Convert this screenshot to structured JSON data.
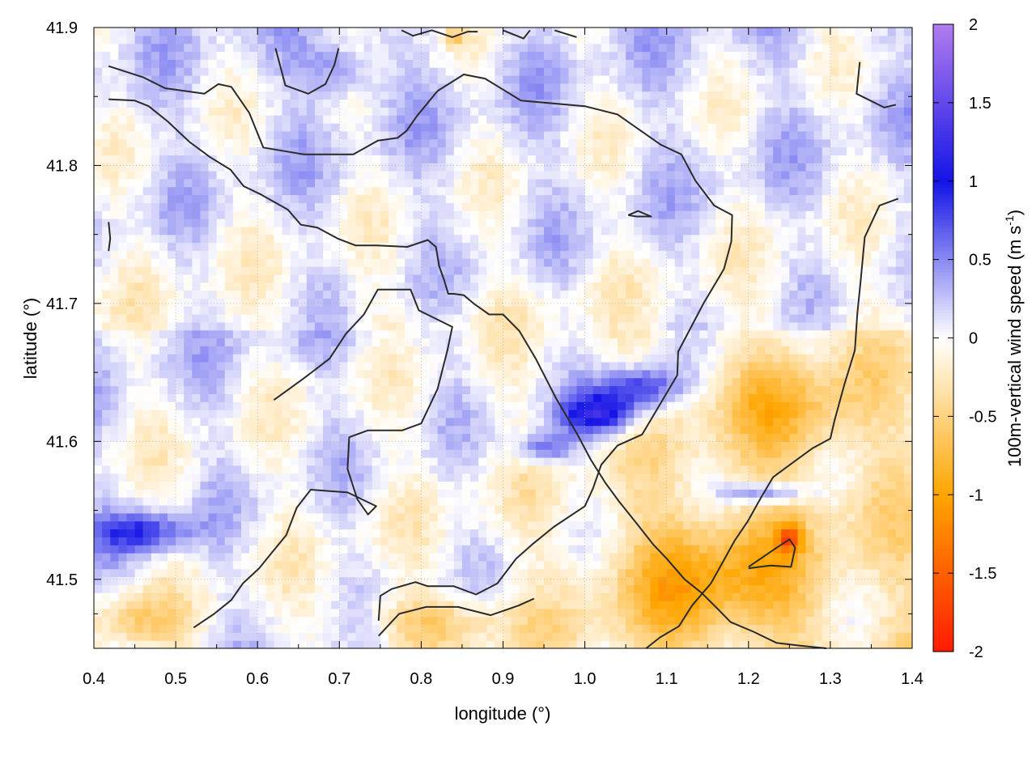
{
  "chart_data": {
    "type": "heatmap",
    "xlabel": "longitude (°)",
    "ylabel": "latitude (°)",
    "xlim": [
      0.4,
      1.4
    ],
    "ylim": [
      41.45,
      41.9
    ],
    "x_ticks": [
      0.4,
      0.5,
      0.6,
      0.7,
      0.8,
      0.9,
      1.0,
      1.1,
      1.2,
      1.3,
      1.4
    ],
    "x_tick_labels": [
      "0.4",
      "0.5",
      "0.6",
      "0.7",
      "0.8",
      "0.9",
      "1.0",
      "1.1",
      "1.2",
      "1.3",
      "1.4"
    ],
    "y_ticks": [
      41.5,
      41.6,
      41.7,
      41.8,
      41.9
    ],
    "y_tick_labels": [
      "41.5",
      "41.6",
      "41.7",
      "41.8",
      "41.9"
    ],
    "grid": true,
    "colorbar": {
      "label_main": "100m-vertical wind speed (m s",
      "label_sup": "-1",
      "label_close": ")",
      "range": [
        -2,
        2
      ],
      "ticks": [
        -2,
        -1.5,
        -1,
        -0.5,
        0,
        0.5,
        1,
        1.5,
        2
      ],
      "tick_labels": [
        "-2",
        "-1.5",
        "-1",
        "-0.5",
        "0",
        "0.5",
        "1",
        "1.5",
        "2"
      ],
      "colors": {
        "-2": "#ff1a00",
        "-1": "#ffa500",
        "0": "#ffffff",
        "1": "#1414e6",
        "2": "#b07cf0"
      }
    },
    "field_features": [
      {
        "lon": 1.02,
        "lat": 41.62,
        "value": 1.2,
        "sx": 0.05,
        "sy": 0.015
      },
      {
        "lon": 1.07,
        "lat": 41.64,
        "value": 0.9,
        "sx": 0.05,
        "sy": 0.015
      },
      {
        "lon": 0.95,
        "lat": 41.595,
        "value": 0.7,
        "sx": 0.04,
        "sy": 0.012
      },
      {
        "lon": 0.46,
        "lat": 41.535,
        "value": 0.8,
        "sx": 0.06,
        "sy": 0.015
      },
      {
        "lon": 1.22,
        "lat": 41.563,
        "value": 0.8,
        "sx": 0.05,
        "sy": 0.008
      },
      {
        "lon": 1.25,
        "lat": 41.53,
        "value": -1.0,
        "sx": 0.015,
        "sy": 0.01
      },
      {
        "lon": 1.15,
        "lat": 41.5,
        "value": -0.7,
        "sx": 0.12,
        "sy": 0.05
      },
      {
        "lon": 0.82,
        "lat": 41.47,
        "value": -0.5,
        "sx": 0.1,
        "sy": 0.02
      },
      {
        "lon": 0.45,
        "lat": 41.47,
        "value": -0.5,
        "sx": 0.05,
        "sy": 0.02
      },
      {
        "lon": 1.25,
        "lat": 41.62,
        "value": -0.5,
        "sx": 0.08,
        "sy": 0.04
      },
      {
        "lon": 0.84,
        "lat": 41.893,
        "value": -0.6,
        "sx": 0.01,
        "sy": 0.006
      },
      {
        "lon": 0.7,
        "lat": 41.87,
        "value": 0.5,
        "sx": 0.05,
        "sy": 0.02
      }
    ],
    "contours": [
      {
        "name": "contour-outer-west",
        "points": [
          [
            0.418,
            41.872
          ],
          [
            0.46,
            41.864
          ],
          [
            0.487,
            41.856
          ],
          [
            0.535,
            41.852
          ],
          [
            0.552,
            41.859
          ],
          [
            0.568,
            41.857
          ],
          [
            0.59,
            41.838
          ],
          [
            0.607,
            41.813
          ],
          [
            0.657,
            41.808
          ],
          [
            0.717,
            41.808
          ],
          [
            0.747,
            41.818
          ],
          [
            0.771,
            41.82
          ],
          [
            0.782,
            41.825
          ],
          [
            0.795,
            41.836
          ],
          [
            0.82,
            41.854
          ],
          [
            0.852,
            41.866
          ],
          [
            0.878,
            41.863
          ],
          [
            0.9,
            41.855
          ],
          [
            0.922,
            41.847
          ],
          [
            1.0,
            41.843
          ],
          [
            1.04,
            41.837
          ],
          [
            1.093,
            41.815
          ],
          [
            1.118,
            41.808
          ],
          [
            1.135,
            41.789
          ],
          [
            1.158,
            41.771
          ],
          [
            1.18,
            41.764
          ],
          [
            1.179,
            41.745
          ],
          [
            1.17,
            41.725
          ],
          [
            1.145,
            41.7
          ],
          [
            1.114,
            41.665
          ],
          [
            1.113,
            41.648
          ],
          [
            1.07,
            41.605
          ],
          [
            1.04,
            41.597
          ],
          [
            1.02,
            41.583
          ],
          [
            1.01,
            41.566
          ],
          [
            1.0,
            41.553
          ],
          [
            0.962,
            41.538
          ],
          [
            0.935,
            41.525
          ],
          [
            0.916,
            41.515
          ],
          [
            0.893,
            41.497
          ],
          [
            0.867,
            41.489
          ],
          [
            0.84,
            41.495
          ],
          [
            0.808,
            41.495
          ],
          [
            0.793,
            41.498
          ],
          [
            0.764,
            41.493
          ],
          [
            0.75,
            41.488
          ],
          [
            0.748,
            41.47
          ]
        ]
      },
      {
        "name": "contour-west-inner",
        "points": [
          [
            0.418,
            41.848
          ],
          [
            0.45,
            41.847
          ],
          [
            0.467,
            41.843
          ],
          [
            0.49,
            41.832
          ],
          [
            0.517,
            41.817
          ],
          [
            0.542,
            41.806
          ],
          [
            0.567,
            41.797
          ],
          [
            0.583,
            41.785
          ],
          [
            0.604,
            41.779
          ],
          [
            0.637,
            41.768
          ],
          [
            0.653,
            41.757
          ],
          [
            0.673,
            41.755
          ],
          [
            0.698,
            41.747
          ],
          [
            0.72,
            41.742
          ],
          [
            0.746,
            41.742
          ],
          [
            0.783,
            41.741
          ],
          [
            0.808,
            41.746
          ],
          [
            0.818,
            41.741
          ],
          [
            0.822,
            41.727
          ],
          [
            0.828,
            41.717
          ],
          [
            0.833,
            41.707
          ],
          [
            0.84,
            41.707
          ],
          [
            0.852,
            41.706
          ],
          [
            0.864,
            41.7
          ],
          [
            0.883,
            41.692
          ],
          [
            0.9,
            41.692
          ],
          [
            0.92,
            41.68
          ],
          [
            0.94,
            41.66
          ],
          [
            0.965,
            41.631
          ],
          [
            0.99,
            41.606
          ],
          [
            1.007,
            41.587
          ],
          [
            1.025,
            41.57
          ],
          [
            1.041,
            41.557
          ],
          [
            1.064,
            41.54
          ],
          [
            1.084,
            41.525
          ],
          [
            1.1,
            41.515
          ],
          [
            1.122,
            41.5
          ],
          [
            1.143,
            41.49
          ],
          [
            1.165,
            41.477
          ],
          [
            1.178,
            41.469
          ],
          [
            1.206,
            41.462
          ],
          [
            1.234,
            41.454
          ],
          [
            1.262,
            41.452
          ],
          [
            1.295,
            41.45
          ]
        ]
      },
      {
        "name": "contour-central-loop",
        "points": [
          [
            0.62,
            41.63
          ],
          [
            0.655,
            41.645
          ],
          [
            0.688,
            41.66
          ],
          [
            0.708,
            41.678
          ],
          [
            0.73,
            41.692
          ],
          [
            0.747,
            41.71
          ],
          [
            0.787,
            41.71
          ],
          [
            0.797,
            41.695
          ],
          [
            0.838,
            41.683
          ],
          [
            0.832,
            41.666
          ],
          [
            0.82,
            41.638
          ],
          [
            0.8,
            41.613
          ],
          [
            0.777,
            41.608
          ],
          [
            0.735,
            41.608
          ],
          [
            0.712,
            41.603
          ],
          [
            0.71,
            41.58
          ],
          [
            0.722,
            41.558
          ],
          [
            0.735,
            41.547
          ],
          [
            0.745,
            41.553
          ],
          [
            0.71,
            41.563
          ],
          [
            0.665,
            41.565
          ],
          [
            0.648,
            41.552
          ],
          [
            0.635,
            41.532
          ],
          [
            0.617,
            41.519
          ],
          [
            0.602,
            41.508
          ],
          [
            0.582,
            41.497
          ],
          [
            0.568,
            41.485
          ],
          [
            0.547,
            41.475
          ],
          [
            0.522,
            41.465
          ]
        ]
      },
      {
        "name": "contour-east-ridge",
        "points": [
          [
            1.383,
            41.776
          ],
          [
            1.36,
            41.771
          ],
          [
            1.342,
            41.748
          ],
          [
            1.337,
            41.716
          ],
          [
            1.333,
            41.693
          ],
          [
            1.33,
            41.666
          ],
          [
            1.317,
            41.641
          ],
          [
            1.305,
            41.615
          ],
          [
            1.3,
            41.602
          ],
          [
            1.278,
            41.595
          ],
          [
            1.255,
            41.585
          ],
          [
            1.23,
            41.574
          ],
          [
            1.215,
            41.559
          ],
          [
            1.199,
            41.542
          ],
          [
            1.183,
            41.528
          ],
          [
            1.169,
            41.513
          ],
          [
            1.154,
            41.497
          ],
          [
            1.131,
            41.481
          ],
          [
            1.115,
            41.466
          ],
          [
            1.092,
            41.458
          ],
          [
            1.075,
            41.45
          ]
        ]
      },
      {
        "name": "contour-north-hook",
        "points": [
          [
            0.622,
            41.885
          ],
          [
            0.634,
            41.858
          ],
          [
            0.662,
            41.852
          ],
          [
            0.683,
            41.859
          ],
          [
            0.694,
            41.873
          ],
          [
            0.699,
            41.885
          ]
        ]
      },
      {
        "name": "contour-east-small",
        "points": [
          [
            1.2,
            41.508
          ],
          [
            1.227,
            41.51
          ],
          [
            1.252,
            41.509
          ],
          [
            1.257,
            41.523
          ],
          [
            1.25,
            41.529
          ],
          [
            1.232,
            41.522
          ],
          [
            1.2,
            41.509
          ]
        ]
      },
      {
        "name": "contour-diamond",
        "points": [
          [
            1.053,
            41.764
          ],
          [
            1.065,
            41.767
          ],
          [
            1.081,
            41.763
          ],
          [
            1.063,
            41.763
          ],
          [
            1.053,
            41.764
          ]
        ]
      },
      {
        "name": "contour-ne-hook",
        "points": [
          [
            1.336,
            41.875
          ],
          [
            1.332,
            41.852
          ],
          [
            1.366,
            41.842
          ],
          [
            1.38,
            41.844
          ]
        ]
      },
      {
        "name": "contour-top-segment",
        "points": [
          [
            0.776,
            41.898
          ],
          [
            0.79,
            41.894
          ],
          [
            0.813,
            41.898
          ],
          [
            0.838,
            41.893
          ],
          [
            0.857,
            41.897
          ],
          [
            0.869,
            41.897
          ]
        ]
      },
      {
        "name": "contour-top-segment-2",
        "points": [
          [
            0.9,
            41.898
          ],
          [
            0.925,
            41.892
          ],
          [
            0.933,
            41.898
          ]
        ]
      },
      {
        "name": "contour-top-segment-3",
        "points": [
          [
            0.963,
            41.898
          ],
          [
            0.99,
            41.893
          ]
        ]
      },
      {
        "name": "contour-west-short",
        "points": [
          [
            0.418,
            41.759
          ],
          [
            0.42,
            41.747
          ],
          [
            0.418,
            41.738
          ]
        ]
      },
      {
        "name": "contour-south-middle",
        "points": [
          [
            0.748,
            41.459
          ],
          [
            0.773,
            41.475
          ],
          [
            0.806,
            41.48
          ],
          [
            0.845,
            41.48
          ],
          [
            0.885,
            41.474
          ],
          [
            0.919,
            41.481
          ],
          [
            0.938,
            41.486
          ]
        ]
      }
    ]
  }
}
